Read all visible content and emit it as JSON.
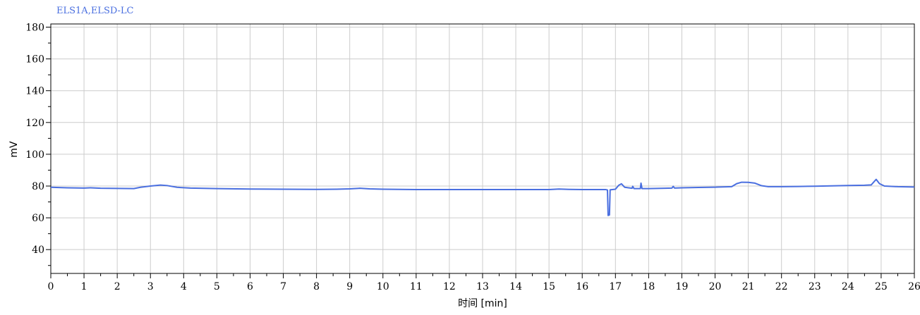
{
  "chart_data": {
    "type": "line",
    "title": "ELS1A,ELSD-LC",
    "xlabel": "时间 [min]",
    "ylabel": "mV",
    "xlim": [
      0,
      26
    ],
    "ylim": [
      25,
      182
    ],
    "x_ticks": [
      0,
      1,
      2,
      3,
      4,
      5,
      6,
      7,
      8,
      9,
      10,
      11,
      12,
      13,
      14,
      15,
      16,
      17,
      18,
      19,
      20,
      21,
      22,
      23,
      24,
      25,
      26
    ],
    "y_ticks": [
      40,
      60,
      80,
      100,
      120,
      140,
      160,
      180
    ],
    "grid": true,
    "colors": {
      "series": "#4a6fe0",
      "title": "#4a6fe0",
      "grid": "#cccccc",
      "axis": "#000000"
    },
    "series": [
      {
        "points": [
          [
            0,
            79.2
          ],
          [
            0.5,
            78.9
          ],
          [
            1.0,
            78.7
          ],
          [
            1.2,
            78.9
          ],
          [
            1.5,
            78.6
          ],
          [
            2.0,
            78.5
          ],
          [
            2.5,
            78.4
          ],
          [
            2.7,
            79.2
          ],
          [
            3.0,
            80.0
          ],
          [
            3.3,
            80.6
          ],
          [
            3.5,
            80.3
          ],
          [
            3.8,
            79.2
          ],
          [
            4.2,
            78.7
          ],
          [
            5.0,
            78.4
          ],
          [
            6.0,
            78.1
          ],
          [
            7.0,
            78.0
          ],
          [
            8.0,
            77.9
          ],
          [
            8.6,
            78.0
          ],
          [
            9.0,
            78.2
          ],
          [
            9.3,
            78.6
          ],
          [
            9.6,
            78.2
          ],
          [
            10.0,
            78.0
          ],
          [
            11.0,
            77.8
          ],
          [
            12.0,
            77.8
          ],
          [
            13.0,
            77.8
          ],
          [
            14.0,
            77.8
          ],
          [
            15.0,
            77.8
          ],
          [
            15.3,
            78.1
          ],
          [
            15.6,
            77.9
          ],
          [
            16.0,
            77.8
          ],
          [
            16.7,
            77.8
          ],
          [
            16.76,
            77.5
          ],
          [
            16.78,
            61.5
          ],
          [
            16.82,
            61.8
          ],
          [
            16.84,
            77.6
          ],
          [
            17.0,
            78.0
          ],
          [
            17.1,
            80.5
          ],
          [
            17.18,
            81.4
          ],
          [
            17.28,
            79.2
          ],
          [
            17.5,
            78.6
          ],
          [
            17.52,
            79.8
          ],
          [
            17.56,
            78.4
          ],
          [
            17.75,
            78.4
          ],
          [
            17.77,
            81.8
          ],
          [
            17.8,
            78.4
          ],
          [
            18.0,
            78.4
          ],
          [
            18.5,
            78.6
          ],
          [
            18.7,
            78.7
          ],
          [
            18.74,
            79.8
          ],
          [
            18.78,
            78.7
          ],
          [
            19.0,
            78.9
          ],
          [
            19.5,
            79.1
          ],
          [
            20.0,
            79.3
          ],
          [
            20.5,
            79.6
          ],
          [
            20.65,
            81.5
          ],
          [
            20.8,
            82.4
          ],
          [
            21.0,
            82.3
          ],
          [
            21.2,
            81.8
          ],
          [
            21.4,
            80.2
          ],
          [
            21.6,
            79.6
          ],
          [
            22.0,
            79.6
          ],
          [
            22.5,
            79.7
          ],
          [
            23.0,
            79.9
          ],
          [
            23.5,
            80.1
          ],
          [
            24.0,
            80.3
          ],
          [
            24.5,
            80.5
          ],
          [
            24.7,
            80.7
          ],
          [
            24.85,
            84.2
          ],
          [
            24.95,
            81.5
          ],
          [
            25.1,
            80.0
          ],
          [
            25.5,
            79.6
          ],
          [
            26.0,
            79.4
          ]
        ]
      }
    ]
  }
}
